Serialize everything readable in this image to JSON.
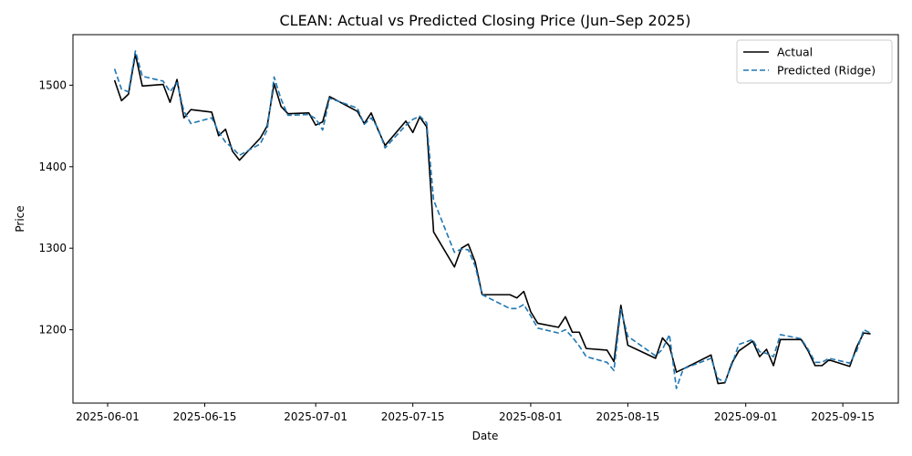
{
  "chart_data": {
    "type": "line",
    "title": "CLEAN: Actual vs Predicted Closing Price (Jun–Sep 2025)",
    "xlabel": "Date",
    "ylabel": "Price",
    "x_range": [
      "2025-05-27",
      "2025-09-23"
    ],
    "ylim": [
      1110,
      1562
    ],
    "x_ticks": [
      "2025-06-01",
      "2025-06-15",
      "2025-07-01",
      "2025-07-15",
      "2025-08-01",
      "2025-08-15",
      "2025-09-01",
      "2025-09-15"
    ],
    "y_ticks": [
      1200,
      1300,
      1400,
      1500
    ],
    "grid": false,
    "legend_position": "top-right",
    "series": [
      {
        "name": "Actual",
        "color": "#000000",
        "style": "solid",
        "points": [
          [
            "2025-06-02",
            1506
          ],
          [
            "2025-06-03",
            1481
          ],
          [
            "2025-06-04",
            1489
          ],
          [
            "2025-06-05",
            1538
          ],
          [
            "2025-06-06",
            1499
          ],
          [
            "2025-06-09",
            1501
          ],
          [
            "2025-06-10",
            1479
          ],
          [
            "2025-06-11",
            1507
          ],
          [
            "2025-06-12",
            1460
          ],
          [
            "2025-06-13",
            1470
          ],
          [
            "2025-06-16",
            1467
          ],
          [
            "2025-06-17",
            1438
          ],
          [
            "2025-06-18",
            1446
          ],
          [
            "2025-06-19",
            1419
          ],
          [
            "2025-06-20",
            1408
          ],
          [
            "2025-06-23",
            1435
          ],
          [
            "2025-06-24",
            1450
          ],
          [
            "2025-06-25",
            1502
          ],
          [
            "2025-06-26",
            1474
          ],
          [
            "2025-06-27",
            1465
          ],
          [
            "2025-06-30",
            1466
          ],
          [
            "2025-07-01",
            1451
          ],
          [
            "2025-07-02",
            1455
          ],
          [
            "2025-07-03",
            1486
          ],
          [
            "2025-07-07",
            1468
          ],
          [
            "2025-07-08",
            1453
          ],
          [
            "2025-07-09",
            1466
          ],
          [
            "2025-07-10",
            1445
          ],
          [
            "2025-07-11",
            1426
          ],
          [
            "2025-07-14",
            1456
          ],
          [
            "2025-07-15",
            1442
          ],
          [
            "2025-07-16",
            1461
          ],
          [
            "2025-07-17",
            1449
          ],
          [
            "2025-07-18",
            1320
          ],
          [
            "2025-07-21",
            1277
          ],
          [
            "2025-07-22",
            1300
          ],
          [
            "2025-07-23",
            1305
          ],
          [
            "2025-07-24",
            1283
          ],
          [
            "2025-07-25",
            1243
          ],
          [
            "2025-07-29",
            1243
          ],
          [
            "2025-07-30",
            1239
          ],
          [
            "2025-07-31",
            1247
          ],
          [
            "2025-08-01",
            1222
          ],
          [
            "2025-08-02",
            1208
          ],
          [
            "2025-08-05",
            1203
          ],
          [
            "2025-08-06",
            1216
          ],
          [
            "2025-08-07",
            1197
          ],
          [
            "2025-08-08",
            1197
          ],
          [
            "2025-08-09",
            1177
          ],
          [
            "2025-08-12",
            1175
          ],
          [
            "2025-08-13",
            1161
          ],
          [
            "2025-08-14",
            1230
          ],
          [
            "2025-08-15",
            1181
          ],
          [
            "2025-08-19",
            1165
          ],
          [
            "2025-08-20",
            1190
          ],
          [
            "2025-08-21",
            1180
          ],
          [
            "2025-08-22",
            1148
          ],
          [
            "2025-08-23",
            1152
          ],
          [
            "2025-08-27",
            1169
          ],
          [
            "2025-08-28",
            1134
          ],
          [
            "2025-08-29",
            1135
          ],
          [
            "2025-08-30",
            1159
          ],
          [
            "2025-08-31",
            1174
          ],
          [
            "2025-09-02",
            1186
          ],
          [
            "2025-09-03",
            1167
          ],
          [
            "2025-09-04",
            1176
          ],
          [
            "2025-09-05",
            1156
          ],
          [
            "2025-09-06",
            1188
          ],
          [
            "2025-09-09",
            1188
          ],
          [
            "2025-09-10",
            1174
          ],
          [
            "2025-09-11",
            1156
          ],
          [
            "2025-09-12",
            1156
          ],
          [
            "2025-09-13",
            1163
          ],
          [
            "2025-09-16",
            1155
          ],
          [
            "2025-09-17",
            1179
          ],
          [
            "2025-09-18",
            1196
          ],
          [
            "2025-09-19",
            1195
          ]
        ]
      },
      {
        "name": "Predicted (Ridge)",
        "color": "#1f77b4",
        "style": "dashed",
        "points": [
          [
            "2025-06-02",
            1520
          ],
          [
            "2025-06-03",
            1495
          ],
          [
            "2025-06-04",
            1492
          ],
          [
            "2025-06-05",
            1542
          ],
          [
            "2025-06-06",
            1511
          ],
          [
            "2025-06-09",
            1505
          ],
          [
            "2025-06-10",
            1492
          ],
          [
            "2025-06-11",
            1503
          ],
          [
            "2025-06-12",
            1468
          ],
          [
            "2025-06-13",
            1453
          ],
          [
            "2025-06-16",
            1460
          ],
          [
            "2025-06-17",
            1443
          ],
          [
            "2025-06-18",
            1430
          ],
          [
            "2025-06-19",
            1423
          ],
          [
            "2025-06-20",
            1414
          ],
          [
            "2025-06-23",
            1428
          ],
          [
            "2025-06-24",
            1445
          ],
          [
            "2025-06-25",
            1510
          ],
          [
            "2025-06-26",
            1483
          ],
          [
            "2025-06-27",
            1463
          ],
          [
            "2025-06-30",
            1464
          ],
          [
            "2025-07-01",
            1459
          ],
          [
            "2025-07-02",
            1445
          ],
          [
            "2025-07-03",
            1484
          ],
          [
            "2025-07-07",
            1472
          ],
          [
            "2025-07-08",
            1452
          ],
          [
            "2025-07-09",
            1460
          ],
          [
            "2025-07-10",
            1447
          ],
          [
            "2025-07-11",
            1423
          ],
          [
            "2025-07-14",
            1451
          ],
          [
            "2025-07-15",
            1458
          ],
          [
            "2025-07-16",
            1462
          ],
          [
            "2025-07-17",
            1454
          ],
          [
            "2025-07-18",
            1359
          ],
          [
            "2025-07-21",
            1295
          ],
          [
            "2025-07-22",
            1299
          ],
          [
            "2025-07-23",
            1298
          ],
          [
            "2025-07-24",
            1278
          ],
          [
            "2025-07-25",
            1243
          ],
          [
            "2025-07-29",
            1226
          ],
          [
            "2025-07-30",
            1226
          ],
          [
            "2025-07-31",
            1231
          ],
          [
            "2025-08-01",
            1217
          ],
          [
            "2025-08-02",
            1202
          ],
          [
            "2025-08-05",
            1196
          ],
          [
            "2025-08-06",
            1200
          ],
          [
            "2025-08-07",
            1191
          ],
          [
            "2025-08-08",
            1180
          ],
          [
            "2025-08-09",
            1167
          ],
          [
            "2025-08-12",
            1160
          ],
          [
            "2025-08-13",
            1150
          ],
          [
            "2025-08-14",
            1225
          ],
          [
            "2025-08-15",
            1192
          ],
          [
            "2025-08-19",
            1168
          ],
          [
            "2025-08-20",
            1176
          ],
          [
            "2025-08-21",
            1194
          ],
          [
            "2025-08-22",
            1128
          ],
          [
            "2025-08-23",
            1152
          ],
          [
            "2025-08-27",
            1165
          ],
          [
            "2025-08-28",
            1140
          ],
          [
            "2025-08-29",
            1136
          ],
          [
            "2025-08-30",
            1157
          ],
          [
            "2025-08-31",
            1182
          ],
          [
            "2025-09-02",
            1188
          ],
          [
            "2025-09-03",
            1173
          ],
          [
            "2025-09-04",
            1171
          ],
          [
            "2025-09-05",
            1167
          ],
          [
            "2025-09-06",
            1194
          ],
          [
            "2025-09-09",
            1189
          ],
          [
            "2025-09-10",
            1176
          ],
          [
            "2025-09-11",
            1160
          ],
          [
            "2025-09-12",
            1160
          ],
          [
            "2025-09-13",
            1165
          ],
          [
            "2025-09-16",
            1159
          ],
          [
            "2025-09-17",
            1174
          ],
          [
            "2025-09-18",
            1200
          ],
          [
            "2025-09-19",
            1196
          ]
        ]
      }
    ]
  }
}
